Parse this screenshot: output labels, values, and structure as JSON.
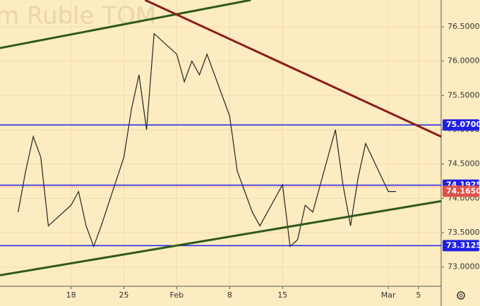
{
  "chart_data": {
    "type": "line",
    "title": "m Ruble TOM",
    "x": [
      11,
      12,
      13,
      14,
      15,
      18,
      19,
      20,
      21,
      22,
      25,
      26,
      27,
      28,
      29,
      32,
      33,
      34,
      35,
      36,
      39,
      40,
      41,
      42,
      43,
      46,
      47,
      48,
      49,
      50,
      53,
      54,
      55,
      56,
      57,
      60,
      61
    ],
    "values": [
      73.8,
      74.4,
      74.9,
      74.6,
      73.6,
      73.9,
      74.1,
      73.6,
      73.3,
      73.6,
      74.6,
      75.3,
      75.8,
      75.0,
      76.4,
      76.1,
      75.7,
      76.0,
      75.8,
      76.1,
      75.2,
      74.4,
      74.1,
      73.8,
      73.6,
      74.2,
      73.3,
      73.4,
      73.9,
      73.8,
      75.0,
      74.2,
      73.6,
      74.3,
      74.8,
      74.1,
      74.1
    ],
    "color": "#222222",
    "xlim": [
      8.6,
      67
    ],
    "ylim": [
      72.72,
      76.89
    ],
    "xticks": [
      18,
      25,
      {
        "value": 32,
        "label": "Feb"
      },
      {
        "value": 39,
        "label": "8"
      },
      {
        "value": 46,
        "label": "15"
      },
      {
        "value": 60,
        "label": "Mar"
      },
      {
        "value": 64,
        "label": "5"
      }
    ],
    "yticks": [
      {
        "value": 73.0,
        "label": "73.0000"
      },
      {
        "value": 73.5,
        "label": "73.5000"
      },
      {
        "value": 74.0,
        "label": "74.0000"
      },
      {
        "value": 74.5,
        "label": "74.5000"
      },
      {
        "value": 75.0,
        "label": "75.0000"
      },
      {
        "value": 75.5,
        "label": "75.5000"
      },
      {
        "value": 76.0,
        "label": "76.0000"
      },
      {
        "value": 76.5,
        "label": "76.5000"
      }
    ],
    "grid": true,
    "levels": [
      {
        "value": 75.07,
        "label": "75.0700",
        "color": "#1f1fe6"
      },
      {
        "value": 74.1925,
        "label": "74.1925",
        "color": "#1f1fe6"
      },
      {
        "value": 73.3125,
        "label": "73.3125",
        "color": "#1f1fe6"
      }
    ],
    "last": {
      "value": 74.165,
      "label": "74.1650",
      "color": "#e0504a"
    },
    "trendlines": [
      {
        "x": [
          8.6,
          41.8
        ],
        "values": [
          76.19,
          76.89
        ],
        "color": "#2e5a1c"
      },
      {
        "x": [
          27.8,
          67
        ],
        "values": [
          76.89,
          74.9
        ],
        "color": "#8b1a1a"
      },
      {
        "x": [
          8.6,
          67
        ],
        "values": [
          72.88,
          73.96
        ],
        "color": "#2e5a1c"
      }
    ]
  }
}
